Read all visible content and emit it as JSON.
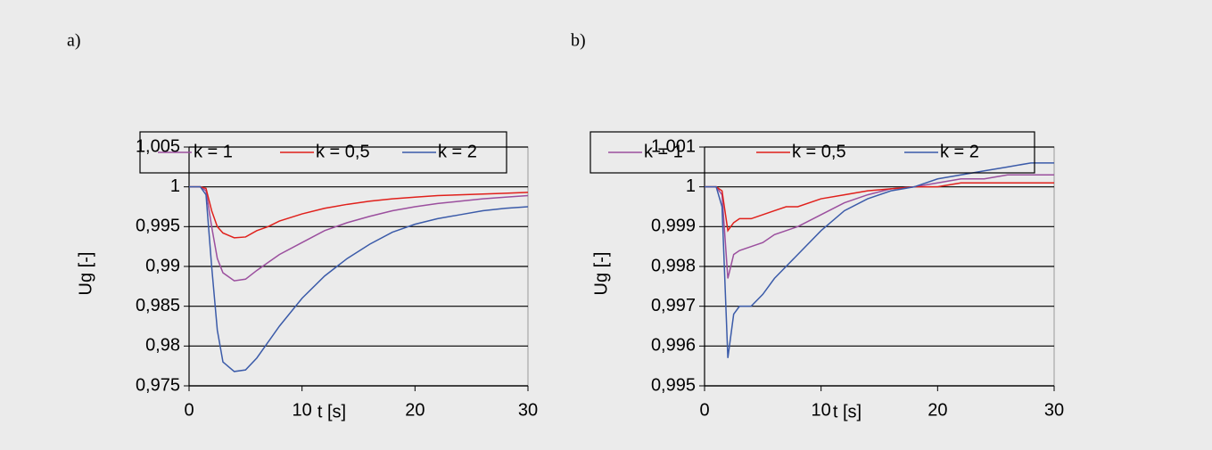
{
  "chart_data": [
    {
      "type": "line",
      "title": "a)",
      "ylabel": "Ug [-]",
      "xlabel": "t [s]",
      "x": [
        0,
        1,
        1.5,
        2,
        2.5,
        3,
        4,
        5,
        6,
        7,
        8,
        10,
        12,
        14,
        16,
        18,
        20,
        22,
        24,
        26,
        28,
        30
      ],
      "series": [
        {
          "name": "k = 1",
          "color": "#9b4f9e",
          "values": [
            1,
            1,
            0.9995,
            0.995,
            0.991,
            0.9892,
            0.9882,
            0.9884,
            0.9895,
            0.9905,
            0.9915,
            0.993,
            0.9945,
            0.9955,
            0.9963,
            0.997,
            0.9975,
            0.9979,
            0.9982,
            0.9985,
            0.9987,
            0.9989
          ]
        },
        {
          "name": "k = 0,5",
          "color": "#e0201b",
          "values": [
            1,
            1,
            0.9998,
            0.997,
            0.995,
            0.9942,
            0.9936,
            0.9937,
            0.9945,
            0.995,
            0.9957,
            0.9966,
            0.9973,
            0.9978,
            0.9982,
            0.9985,
            0.9987,
            0.9989,
            0.999,
            0.9991,
            0.9992,
            0.9993
          ]
        },
        {
          "name": "k = 2",
          "color": "#3b5ba9",
          "values": [
            1,
            1,
            0.999,
            0.99,
            0.982,
            0.978,
            0.9768,
            0.977,
            0.9785,
            0.9805,
            0.9825,
            0.986,
            0.9888,
            0.991,
            0.9928,
            0.9943,
            0.9953,
            0.996,
            0.9965,
            0.997,
            0.9973,
            0.9975
          ]
        }
      ],
      "xlim": [
        0,
        30
      ],
      "xticks": [
        0,
        10,
        20,
        30
      ],
      "ylim": [
        0.975,
        1.005
      ],
      "yticks": [
        {
          "value": 0.975,
          "label": "0,975"
        },
        {
          "value": 0.98,
          "label": "0,98"
        },
        {
          "value": 0.985,
          "label": "0,985"
        },
        {
          "value": 0.99,
          "label": "0,99"
        },
        {
          "value": 0.995,
          "label": "0,995"
        },
        1,
        {
          "value": 1.005,
          "label": "1,005"
        }
      ],
      "grid": true,
      "legend": "top"
    },
    {
      "type": "line",
      "title": "b)",
      "ylabel": "Ug [-]",
      "xlabel": "t [s]",
      "x": [
        0,
        1,
        1.5,
        2,
        2.5,
        3,
        4,
        5,
        6,
        7,
        8,
        10,
        12,
        14,
        16,
        18,
        20,
        22,
        24,
        26,
        28,
        30
      ],
      "series": [
        {
          "name": "k = 1",
          "color": "#9b4f9e",
          "values": [
            1,
            1,
            0.9998,
            0.9977,
            0.9983,
            0.9984,
            0.9985,
            0.9986,
            0.9988,
            0.9989,
            0.999,
            0.9993,
            0.9996,
            0.9998,
            0.99995,
            1,
            1.0001,
            1.0002,
            1.0002,
            1.0003,
            1.0003,
            1.0003
          ]
        },
        {
          "name": "k = 0,5",
          "color": "#e0201b",
          "values": [
            1,
            1,
            0.9999,
            0.9989,
            0.9991,
            0.9992,
            0.9992,
            0.9993,
            0.9994,
            0.9995,
            0.9995,
            0.9997,
            0.9998,
            0.9999,
            0.99995,
            1,
            1,
            1.0001,
            1.0001,
            1.0001,
            1.0001,
            1.0001
          ]
        },
        {
          "name": "k = 2",
          "color": "#3b5ba9",
          "values": [
            1,
            1,
            0.9995,
            0.9957,
            0.9968,
            0.997,
            0.997,
            0.9973,
            0.9977,
            0.998,
            0.9983,
            0.9989,
            0.9994,
            0.9997,
            0.9999,
            1,
            1.0002,
            1.0003,
            1.0004,
            1.0005,
            1.0006,
            1.0006
          ]
        }
      ],
      "xlim": [
        0,
        30
      ],
      "xticks": [
        0,
        10,
        20,
        30
      ],
      "ylim": [
        0.995,
        1.001
      ],
      "yticks": [
        {
          "value": 0.995,
          "label": "0,995"
        },
        {
          "value": 0.996,
          "label": "0,996"
        },
        {
          "value": 0.997,
          "label": "0,997"
        },
        {
          "value": 0.998,
          "label": "0,998"
        },
        {
          "value": 0.999,
          "label": "0,999"
        },
        1,
        {
          "value": 1.001,
          "label": "1,001"
        }
      ],
      "grid": true,
      "legend": "top"
    }
  ]
}
